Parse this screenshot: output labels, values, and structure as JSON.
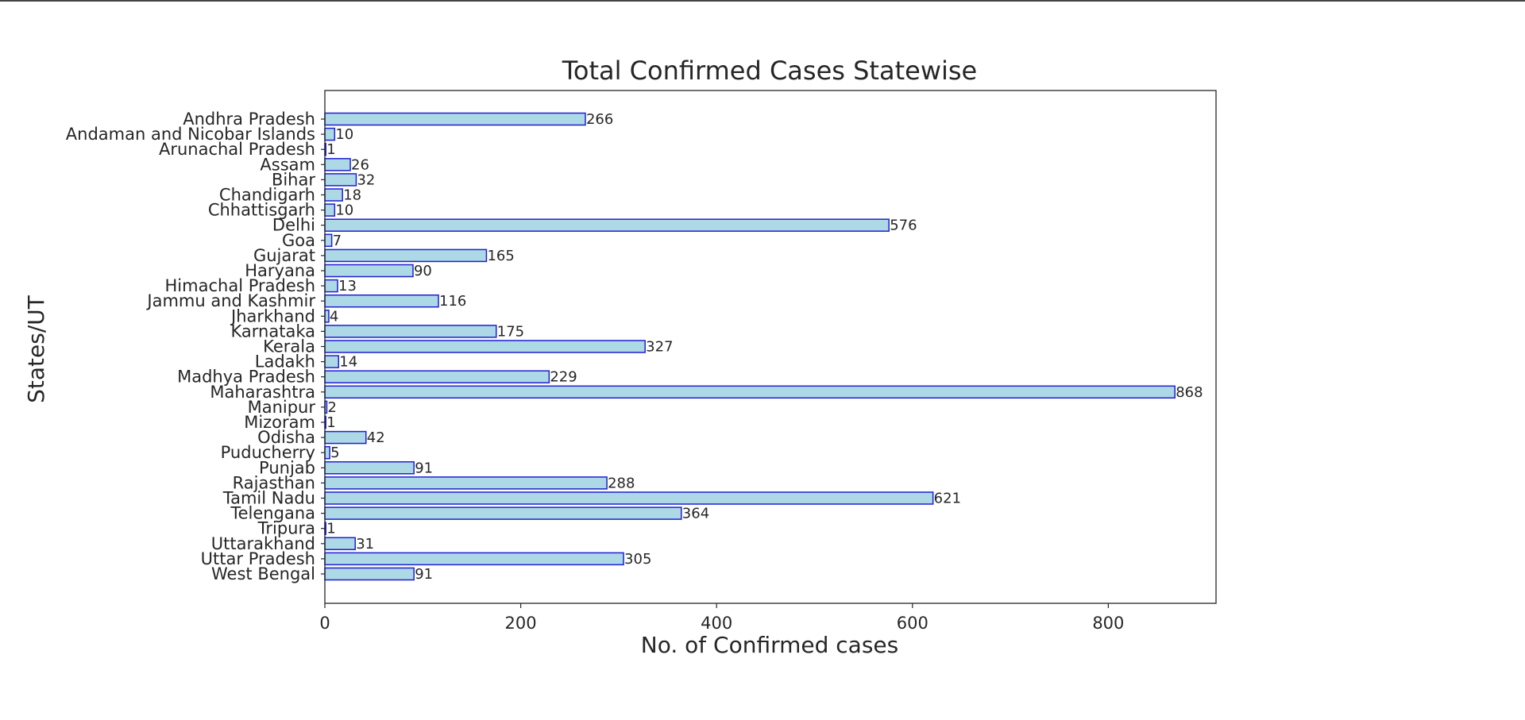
{
  "chart_data": {
    "type": "bar",
    "orientation": "horizontal",
    "title": "Total Confirmed Cases Statewise",
    "xlabel": "No. of Confirmed cases",
    "ylabel": "States/UT",
    "xlim": [
      0,
      910
    ],
    "xticks": [
      0,
      200,
      400,
      600,
      800
    ],
    "grid": false,
    "legend": "none",
    "categories": [
      "Andhra Pradesh",
      "Andaman and Nicobar Islands",
      "Arunachal Pradesh",
      "Assam",
      "Bihar",
      "Chandigarh",
      "Chhattisgarh",
      "Delhi",
      "Goa",
      "Gujarat",
      "Haryana",
      "Himachal Pradesh",
      "Jammu and Kashmir",
      "Jharkhand",
      "Karnataka",
      "Kerala",
      "Ladakh",
      "Madhya Pradesh",
      "Maharashtra",
      "Manipur",
      "Mizoram",
      "Odisha",
      "Puducherry",
      "Punjab",
      "Rajasthan",
      "Tamil Nadu",
      "Telengana",
      "Tripura",
      "Uttarakhand",
      "Uttar Pradesh",
      "West Bengal"
    ],
    "values": [
      266,
      10,
      1,
      26,
      32,
      18,
      10,
      576,
      7,
      165,
      90,
      13,
      116,
      4,
      175,
      327,
      14,
      229,
      868,
      2,
      1,
      42,
      5,
      91,
      288,
      621,
      364,
      1,
      31,
      305,
      91
    ],
    "data_labels": [
      "266",
      "10",
      "1",
      "26",
      "32",
      "18",
      "10",
      "576",
      "7",
      "165",
      "90",
      "13",
      "116",
      "4",
      "175",
      "327",
      "14",
      "229",
      "868",
      "2",
      "1",
      "42",
      "5",
      "91",
      "288",
      "621",
      "364",
      "1",
      "31",
      "305",
      "91"
    ],
    "colors": {
      "bar_fill": "#add8e6",
      "bar_edge": "#1f1fd1",
      "text": "#262626",
      "axis": "#262626"
    }
  }
}
